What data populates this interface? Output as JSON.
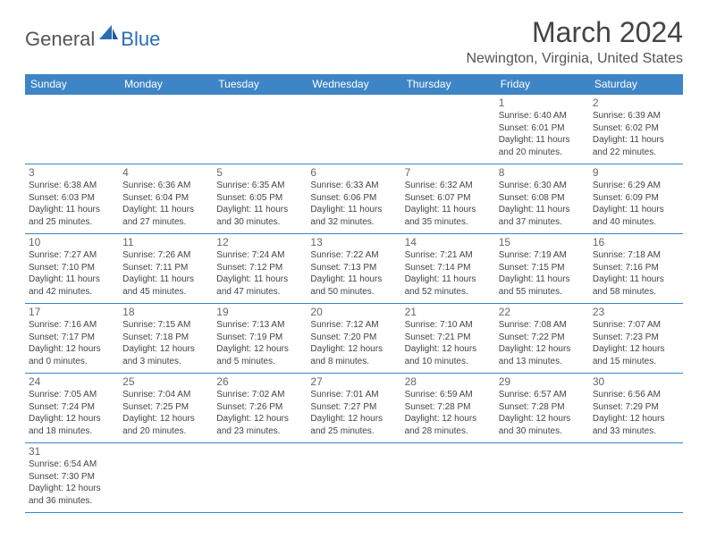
{
  "logo": {
    "part1": "General",
    "part2": "Blue"
  },
  "title": "March 2024",
  "location": "Newington, Virginia, United States",
  "colors": {
    "header_bg": "#3d85c6",
    "header_fg": "#ffffff",
    "border": "#3d85c6",
    "text": "#444444",
    "daynum": "#666666",
    "logo_blue": "#2a6db5"
  },
  "weekdays": [
    "Sunday",
    "Monday",
    "Tuesday",
    "Wednesday",
    "Thursday",
    "Friday",
    "Saturday"
  ],
  "weeks": [
    [
      null,
      null,
      null,
      null,
      null,
      {
        "d": "1",
        "sr": "6:40 AM",
        "ss": "6:01 PM",
        "dl": "11 hours and 20 minutes."
      },
      {
        "d": "2",
        "sr": "6:39 AM",
        "ss": "6:02 PM",
        "dl": "11 hours and 22 minutes."
      }
    ],
    [
      {
        "d": "3",
        "sr": "6:38 AM",
        "ss": "6:03 PM",
        "dl": "11 hours and 25 minutes."
      },
      {
        "d": "4",
        "sr": "6:36 AM",
        "ss": "6:04 PM",
        "dl": "11 hours and 27 minutes."
      },
      {
        "d": "5",
        "sr": "6:35 AM",
        "ss": "6:05 PM",
        "dl": "11 hours and 30 minutes."
      },
      {
        "d": "6",
        "sr": "6:33 AM",
        "ss": "6:06 PM",
        "dl": "11 hours and 32 minutes."
      },
      {
        "d": "7",
        "sr": "6:32 AM",
        "ss": "6:07 PM",
        "dl": "11 hours and 35 minutes."
      },
      {
        "d": "8",
        "sr": "6:30 AM",
        "ss": "6:08 PM",
        "dl": "11 hours and 37 minutes."
      },
      {
        "d": "9",
        "sr": "6:29 AM",
        "ss": "6:09 PM",
        "dl": "11 hours and 40 minutes."
      }
    ],
    [
      {
        "d": "10",
        "sr": "7:27 AM",
        "ss": "7:10 PM",
        "dl": "11 hours and 42 minutes."
      },
      {
        "d": "11",
        "sr": "7:26 AM",
        "ss": "7:11 PM",
        "dl": "11 hours and 45 minutes."
      },
      {
        "d": "12",
        "sr": "7:24 AM",
        "ss": "7:12 PM",
        "dl": "11 hours and 47 minutes."
      },
      {
        "d": "13",
        "sr": "7:22 AM",
        "ss": "7:13 PM",
        "dl": "11 hours and 50 minutes."
      },
      {
        "d": "14",
        "sr": "7:21 AM",
        "ss": "7:14 PM",
        "dl": "11 hours and 52 minutes."
      },
      {
        "d": "15",
        "sr": "7:19 AM",
        "ss": "7:15 PM",
        "dl": "11 hours and 55 minutes."
      },
      {
        "d": "16",
        "sr": "7:18 AM",
        "ss": "7:16 PM",
        "dl": "11 hours and 58 minutes."
      }
    ],
    [
      {
        "d": "17",
        "sr": "7:16 AM",
        "ss": "7:17 PM",
        "dl": "12 hours and 0 minutes."
      },
      {
        "d": "18",
        "sr": "7:15 AM",
        "ss": "7:18 PM",
        "dl": "12 hours and 3 minutes."
      },
      {
        "d": "19",
        "sr": "7:13 AM",
        "ss": "7:19 PM",
        "dl": "12 hours and 5 minutes."
      },
      {
        "d": "20",
        "sr": "7:12 AM",
        "ss": "7:20 PM",
        "dl": "12 hours and 8 minutes."
      },
      {
        "d": "21",
        "sr": "7:10 AM",
        "ss": "7:21 PM",
        "dl": "12 hours and 10 minutes."
      },
      {
        "d": "22",
        "sr": "7:08 AM",
        "ss": "7:22 PM",
        "dl": "12 hours and 13 minutes."
      },
      {
        "d": "23",
        "sr": "7:07 AM",
        "ss": "7:23 PM",
        "dl": "12 hours and 15 minutes."
      }
    ],
    [
      {
        "d": "24",
        "sr": "7:05 AM",
        "ss": "7:24 PM",
        "dl": "12 hours and 18 minutes."
      },
      {
        "d": "25",
        "sr": "7:04 AM",
        "ss": "7:25 PM",
        "dl": "12 hours and 20 minutes."
      },
      {
        "d": "26",
        "sr": "7:02 AM",
        "ss": "7:26 PM",
        "dl": "12 hours and 23 minutes."
      },
      {
        "d": "27",
        "sr": "7:01 AM",
        "ss": "7:27 PM",
        "dl": "12 hours and 25 minutes."
      },
      {
        "d": "28",
        "sr": "6:59 AM",
        "ss": "7:28 PM",
        "dl": "12 hours and 28 minutes."
      },
      {
        "d": "29",
        "sr": "6:57 AM",
        "ss": "7:28 PM",
        "dl": "12 hours and 30 minutes."
      },
      {
        "d": "30",
        "sr": "6:56 AM",
        "ss": "7:29 PM",
        "dl": "12 hours and 33 minutes."
      }
    ],
    [
      {
        "d": "31",
        "sr": "6:54 AM",
        "ss": "7:30 PM",
        "dl": "12 hours and 36 minutes."
      },
      null,
      null,
      null,
      null,
      null,
      null
    ]
  ],
  "labels": {
    "sunrise": "Sunrise: ",
    "sunset": "Sunset: ",
    "daylight": "Daylight: "
  }
}
